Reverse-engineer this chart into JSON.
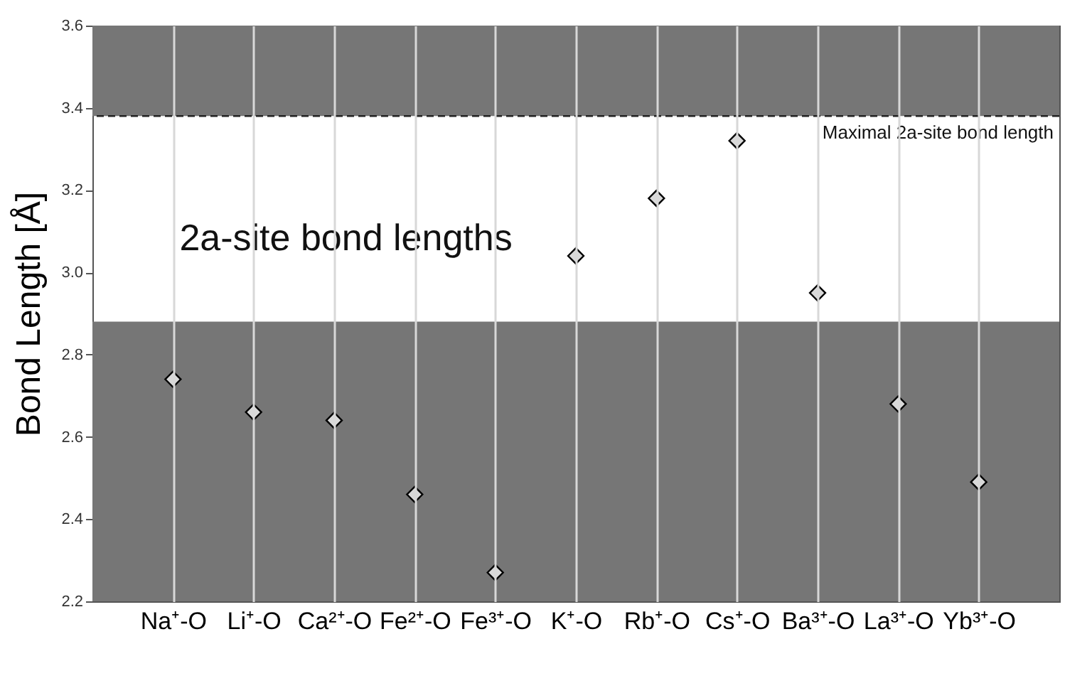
{
  "chart_data": {
    "type": "scatter",
    "categories": [
      "Na⁺-O",
      "Li⁺-O",
      "Ca²⁺-O",
      "Fe²⁺-O",
      "Fe³⁺-O",
      "K⁺-O",
      "Rb⁺-O",
      "Cs⁺-O",
      "Ba³⁺-O",
      "La³⁺-O",
      "Yb³⁺-O"
    ],
    "series": [
      {
        "color": "#d9d9d9",
        "values": [
          2.74,
          2.66,
          2.64,
          2.46,
          2.27,
          3.04,
          3.18,
          3.32,
          2.95,
          2.68,
          2.49
        ]
      }
    ],
    "ylabel": "Bond Length [Å]",
    "ylim": [
      2.2,
      3.6
    ],
    "yticks": [
      2.2,
      2.4,
      2.6,
      2.8,
      {
        "value": 3,
        "label": "3.0"
      },
      3.2,
      3.4,
      3.6
    ],
    "marker": "diamond",
    "grid": "x",
    "bands": [
      {
        "axis": "y",
        "from": 2.2,
        "to": 2.88,
        "color": "#767676"
      },
      {
        "axis": "y",
        "from": 3.38,
        "to": 3.6,
        "color": "#767676"
      }
    ],
    "ref_lines": [
      {
        "axis": "y",
        "value": 3.38,
        "label": "Maximal 2a-site bond length",
        "line_style": "dashed"
      }
    ],
    "annotations": [
      "2a-site bond lengths"
    ]
  }
}
